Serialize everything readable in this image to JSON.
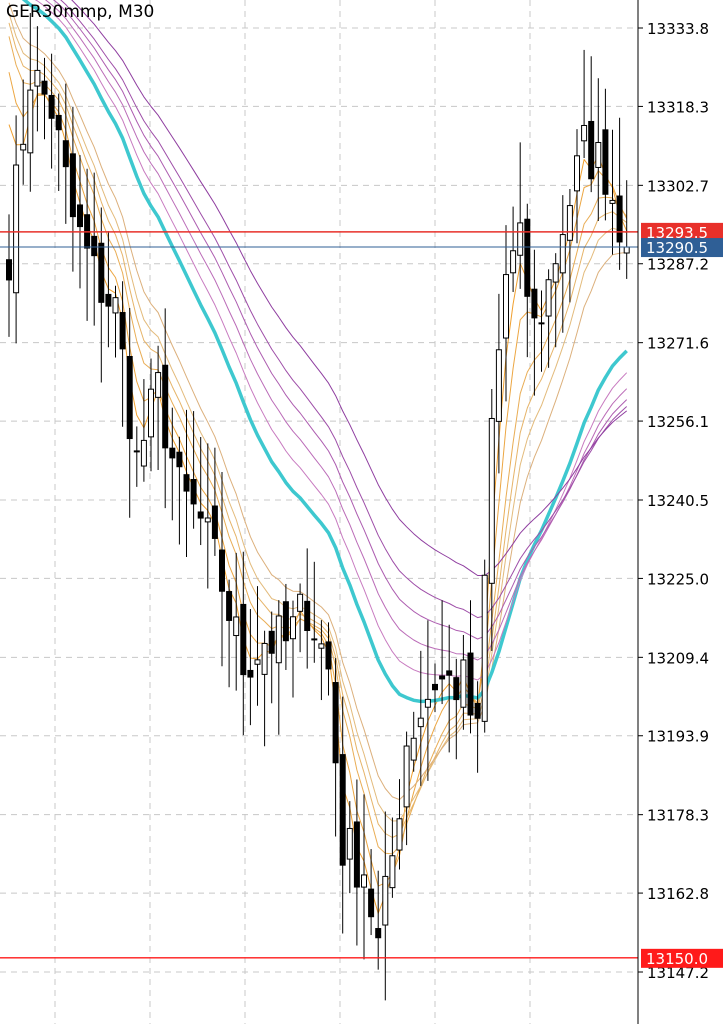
{
  "window": {
    "title": "GER30mmp, M30"
  },
  "chart_data": {
    "type": "candlestick",
    "symbol": "GER30mmp",
    "timeframe": "M30",
    "ylim": [
      13140,
      13340
    ],
    "y_ticks": [
      {
        "value": 13333.8,
        "label": "13333.8"
      },
      {
        "value": 13318.3,
        "label": "13318.3"
      },
      {
        "value": 13302.7,
        "label": "13302.7"
      },
      {
        "value": 13287.2,
        "label": "13287.2"
      },
      {
        "value": 13271.6,
        "label": "13271.6"
      },
      {
        "value": 13256.1,
        "label": "13256.1"
      },
      {
        "value": 13240.5,
        "label": "13240.5"
      },
      {
        "value": 13225.0,
        "label": "13225.0"
      },
      {
        "value": 13209.4,
        "label": "13209.4"
      },
      {
        "value": 13193.9,
        "label": "13193.9"
      },
      {
        "value": 13178.3,
        "label": "13178.3"
      },
      {
        "value": 13162.8,
        "label": "13162.8"
      },
      {
        "value": 13147.2,
        "label": "13147.2"
      }
    ],
    "price_levels": [
      {
        "value": 13293.5,
        "label": "13293.5",
        "color": "#e8302a",
        "kind": "line"
      },
      {
        "value": 13290.5,
        "label": "13290.5",
        "color": "#2f5f96",
        "kind": "bid"
      },
      {
        "value": 13150.0,
        "label": "13150.0",
        "color": "#ff1a1a",
        "kind": "line"
      }
    ],
    "grid": true,
    "candle_count": 88,
    "close_path": [
      [
        0,
        13290
      ],
      [
        3,
        13325
      ],
      [
        6,
        13318
      ],
      [
        9,
        13296
      ],
      [
        12,
        13285
      ],
      [
        15,
        13278
      ],
      [
        18,
        13248
      ],
      [
        21,
        13262
      ],
      [
        24,
        13242
      ],
      [
        27,
        13236
      ],
      [
        30,
        13224
      ],
      [
        33,
        13208
      ],
      [
        36,
        13213
      ],
      [
        39,
        13212
      ],
      [
        42,
        13220
      ],
      [
        45,
        13207
      ],
      [
        47,
        13172
      ],
      [
        50,
        13168
      ],
      [
        52,
        13152
      ],
      [
        54,
        13170
      ],
      [
        56,
        13193
      ],
      [
        60,
        13205
      ],
      [
        64,
        13204
      ],
      [
        66,
        13193
      ],
      [
        68,
        13255
      ],
      [
        70,
        13285
      ],
      [
        72,
        13290
      ],
      [
        74,
        13274
      ],
      [
        76,
        13283
      ],
      [
        78,
        13295
      ],
      [
        81,
        13310
      ],
      [
        84,
        13306
      ],
      [
        87,
        13290.5
      ]
    ],
    "moving_averages": [
      {
        "name": "ma-1",
        "color": "#f0a030",
        "period": 3
      },
      {
        "name": "ma-2",
        "color": "#eca642",
        "period": 5
      },
      {
        "name": "ma-3",
        "color": "#e9ad55",
        "period": 8
      },
      {
        "name": "ma-4",
        "color": "#e6b469",
        "period": 10
      },
      {
        "name": "ma-5",
        "color": "#e3bb7c",
        "period": 12
      },
      {
        "name": "ma-6",
        "color": "#dcb07c",
        "period": 15
      },
      {
        "name": "ma-7",
        "color": "#3ec8cf",
        "period": 30
      },
      {
        "name": "ma-8",
        "color": "#c87bc0",
        "period": 35
      },
      {
        "name": "ma-9",
        "color": "#bb6cb8",
        "period": 40
      },
      {
        "name": "ma-10",
        "color": "#ad5db0",
        "period": 45
      },
      {
        "name": "ma-11",
        "color": "#9e4ea8",
        "period": 50
      },
      {
        "name": "ma-12",
        "color": "#8f3ea0",
        "period": 60
      }
    ]
  }
}
